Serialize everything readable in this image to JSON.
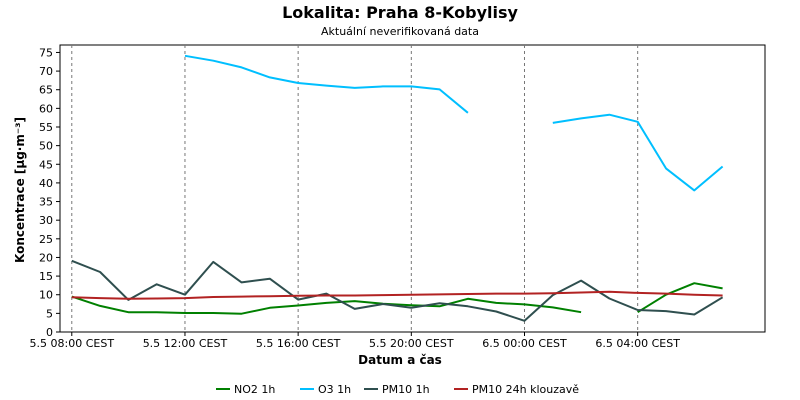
{
  "chart_data": {
    "type": "line",
    "title": "Lokalita: Praha 8-Kobylisy",
    "subtitle": "Aktuální neverifikovaná data",
    "xlabel": "Datum a čas",
    "ylabel": "Koncentrace [µg·m⁻³]",
    "ylim": [
      0,
      77
    ],
    "yticks": [
      0,
      5,
      10,
      15,
      20,
      25,
      30,
      35,
      40,
      45,
      50,
      55,
      60,
      65,
      70,
      75
    ],
    "xlim": [
      "2024-05-05T07:35",
      "2024-05-06T08:30"
    ],
    "xticks": [
      {
        "t": "2024-05-05T08:00",
        "label": "5.5 08:00 CEST"
      },
      {
        "t": "2024-05-05T12:00",
        "label": "5.5 12:00 CEST"
      },
      {
        "t": "2024-05-05T16:00",
        "label": "5.5 16:00 CEST"
      },
      {
        "t": "2024-05-05T20:00",
        "label": "5.5 20:00 CEST"
      },
      {
        "t": "2024-05-06T00:00",
        "label": "6.5 00:00 CEST"
      },
      {
        "t": "2024-05-06T04:00",
        "label": "6.5 04:00 CEST"
      }
    ],
    "grid": true,
    "legend_position": "bottom",
    "x": [
      "2024-05-05T08:00",
      "2024-05-05T09:00",
      "2024-05-05T10:00",
      "2024-05-05T11:00",
      "2024-05-05T12:00",
      "2024-05-05T13:00",
      "2024-05-05T14:00",
      "2024-05-05T15:00",
      "2024-05-05T16:00",
      "2024-05-05T17:00",
      "2024-05-05T18:00",
      "2024-05-05T19:00",
      "2024-05-05T20:00",
      "2024-05-05T21:00",
      "2024-05-05T22:00",
      "2024-05-05T23:00",
      "2024-05-06T00:00",
      "2024-05-06T01:00",
      "2024-05-06T02:00",
      "2024-05-06T03:00",
      "2024-05-06T04:00",
      "2024-05-06T05:00",
      "2024-05-06T06:00",
      "2024-05-06T07:00",
      "2024-05-06T08:00"
    ],
    "series": [
      {
        "name": "NO2 1h",
        "color": "#008000",
        "values": [
          9.5,
          7.0,
          5.3,
          5.3,
          5.1,
          5.1,
          4.9,
          6.5,
          7.1,
          7.8,
          8.3,
          7.6,
          7.2,
          6.9,
          8.9,
          7.8,
          7.4,
          6.6,
          5.3,
          null,
          5.3,
          10.0,
          13.1,
          11.7,
          null
        ]
      },
      {
        "name": "O3 1h",
        "color": "#00bfff",
        "values": [
          null,
          null,
          null,
          null,
          74.1,
          72.8,
          71.0,
          68.3,
          66.8,
          66.1,
          65.5,
          65.9,
          65.9,
          65.1,
          58.8,
          null,
          null,
          56.1,
          57.3,
          58.3,
          56.4,
          43.9,
          38.0,
          44.4,
          null
        ]
      },
      {
        "name": "PM10 1h",
        "color": "#2f4f4f",
        "values": [
          19.1,
          16.1,
          8.6,
          12.8,
          10.0,
          18.8,
          13.3,
          14.3,
          8.7,
          10.3,
          6.2,
          7.5,
          6.5,
          7.7,
          6.9,
          5.5,
          3.0,
          9.9,
          13.8,
          9.0,
          5.9,
          5.6,
          4.7,
          9.3,
          null
        ]
      },
      {
        "name": "PM10 24h klouzavě",
        "color": "#b22222",
        "values": [
          9.3,
          9.1,
          8.9,
          9.0,
          9.1,
          9.4,
          9.5,
          9.6,
          9.7,
          9.8,
          9.8,
          9.9,
          10.0,
          10.1,
          10.2,
          10.3,
          10.3,
          10.4,
          10.6,
          10.8,
          10.5,
          10.3,
          10.0,
          9.8,
          null
        ]
      }
    ]
  }
}
